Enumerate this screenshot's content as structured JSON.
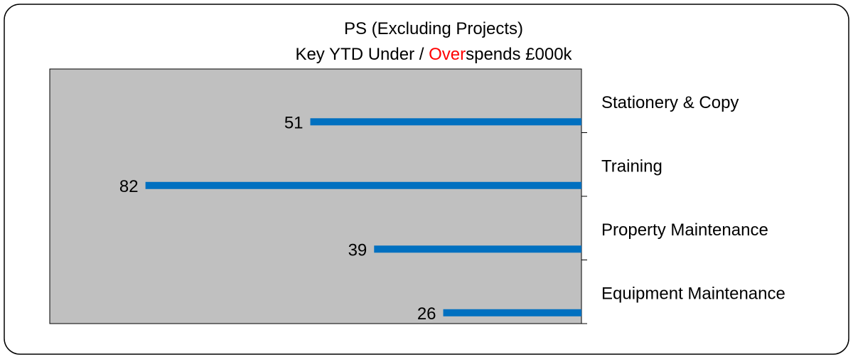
{
  "chart_data": {
    "type": "bar",
    "orientation": "horizontal",
    "title": "PS (Excluding Projects)",
    "subtitle": [
      {
        "text": "Key YTD Under / ",
        "color": "#000000"
      },
      {
        "text": "Over",
        "color": "#ff0000"
      },
      {
        "text": "spends £000k",
        "color": "#000000"
      }
    ],
    "categories": [
      "Stationery & Copy",
      "Training",
      "Property Maintenance",
      "Equipment Maintenance"
    ],
    "values": [
      51,
      82,
      39,
      26
    ],
    "color": "#0070c0",
    "xlim": [
      0,
      100
    ],
    "x_reversed": true,
    "plot_background": "#c0c0c0"
  }
}
